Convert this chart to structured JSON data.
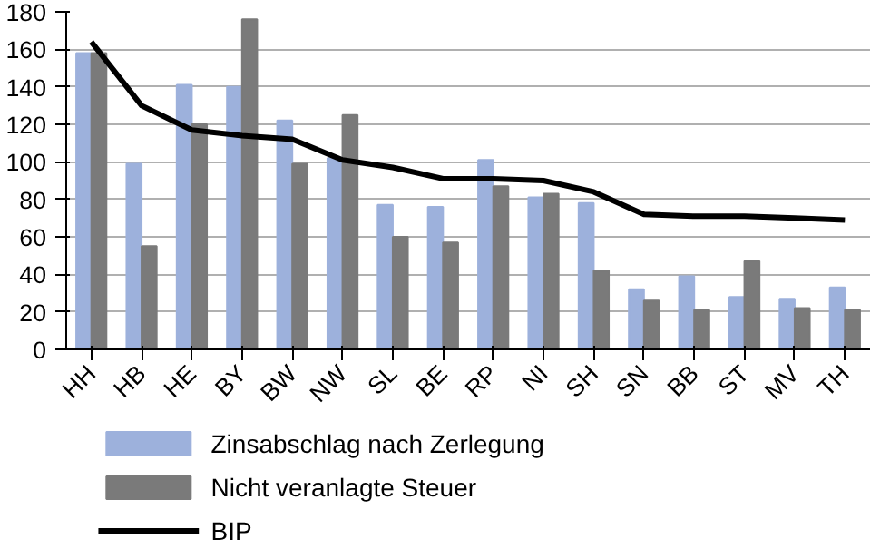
{
  "chart_data": {
    "type": "bar",
    "categories": [
      "HH",
      "HB",
      "HE",
      "BY",
      "BW",
      "NW",
      "SL",
      "BE",
      "RP",
      "NI",
      "SH",
      "SN",
      "BB",
      "ST",
      "MV",
      "TH"
    ],
    "series": [
      {
        "name": "Zinsabschlag nach Zerlegung",
        "color": "#9db1dc",
        "values": [
          158,
          99,
          141,
          140,
          122,
          102,
          77,
          76,
          101,
          81,
          78,
          32,
          39,
          28,
          27,
          33
        ]
      },
      {
        "name": "Nicht veranlagte Steuer",
        "color": "#7a7a7a",
        "values": [
          158,
          55,
          120,
          176,
          99,
          125,
          60,
          57,
          87,
          83,
          42,
          26,
          21,
          47,
          22,
          21
        ]
      },
      {
        "name": "BIP",
        "type": "line",
        "color": "#000000",
        "values": [
          164,
          130,
          117,
          114,
          112,
          101,
          97,
          91,
          91,
          90,
          84,
          72,
          71,
          71,
          70,
          69
        ]
      }
    ],
    "ylim": [
      0,
      180
    ],
    "yticks": [
      0,
      20,
      40,
      60,
      80,
      100,
      120,
      140,
      160,
      180
    ],
    "grid": "y",
    "legend": "bottom",
    "line_style": "solid",
    "marker": "none"
  }
}
